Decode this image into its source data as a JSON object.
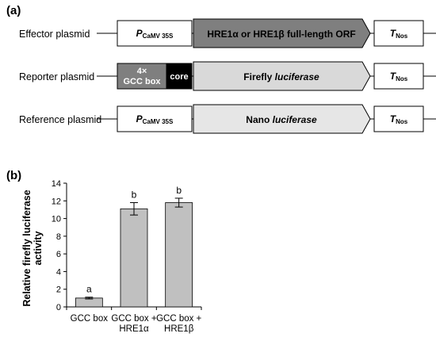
{
  "panel_a": {
    "label": "(a)",
    "effector": {
      "name": "Effector plasmid",
      "promoter": "P",
      "promoter_sub": "CaMV 35S",
      "orf": "HRE1α or HRE1β full-length ORF",
      "terminator": "T",
      "terminator_sub": "Nos"
    },
    "reporter": {
      "name": "Reporter plasmid",
      "box_line1": "4×",
      "box_line2": "GCC box",
      "core": "core",
      "orf_main": "Firefly ",
      "orf_italic": "luciferase",
      "terminator": "T",
      "terminator_sub": "Nos"
    },
    "reference": {
      "name": "Reference plasmid",
      "promoter": "P",
      "promoter_sub": "CaMV 35S",
      "orf_main": "Nano ",
      "orf_italic": "luciferase",
      "terminator": "T",
      "terminator_sub": "Nos"
    }
  },
  "panel_b": {
    "label": "(b)"
  },
  "colors": {
    "effector_orf": "#7f7f7f",
    "reporter_box": "#7f7f7f",
    "core_box": "#000000",
    "firefly_orf": "#d9d9d9",
    "nano_orf": "#e6e6e6",
    "bar_fill": "#c0c0c0"
  },
  "chart_data": {
    "type": "bar",
    "categories": [
      [
        "GCC box"
      ],
      [
        "GCC box +",
        "HRE1α"
      ],
      [
        "GCC box +",
        "HRE1β"
      ]
    ],
    "values": [
      1.0,
      11.1,
      11.8
    ],
    "errors": [
      0.1,
      0.7,
      0.5
    ],
    "letters": [
      "a",
      "b",
      "b"
    ],
    "ylabel_lines": [
      "Relative firefly luciferase",
      "activity"
    ],
    "yticks": [
      0,
      2,
      4,
      6,
      8,
      10,
      12,
      14
    ],
    "ylim": [
      0,
      14
    ],
    "grid": false
  }
}
